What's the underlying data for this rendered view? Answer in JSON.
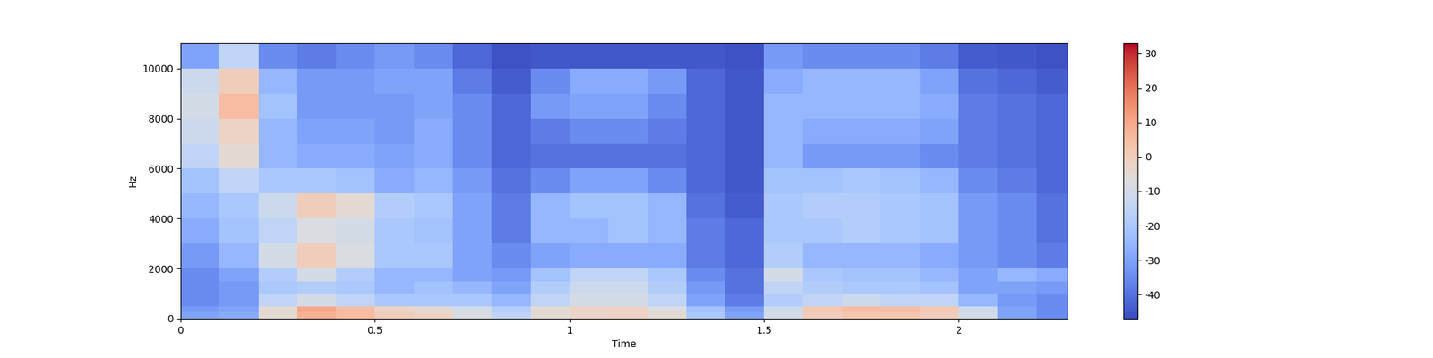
{
  "chart_data": {
    "type": "heatmap",
    "x_label": "Time",
    "y_label": "Hz",
    "color": "coolwarm",
    "xlim": [
      0,
      2.28
    ],
    "ylim": [
      0,
      11025
    ],
    "xticks": [
      0,
      0.5,
      1,
      1.5,
      2
    ],
    "yticks": [
      0,
      2000,
      4000,
      6000,
      8000,
      10000
    ],
    "x_edges": [
      0,
      0.1,
      0.2,
      0.3,
      0.4,
      0.5,
      0.6,
      0.7,
      0.8,
      0.9,
      1.0,
      1.1,
      1.2,
      1.3,
      1.4,
      1.5,
      1.6,
      1.7,
      1.8,
      1.9,
      2.0,
      2.1,
      2.2,
      2.28
    ],
    "y_edges": [
      0,
      250,
      500,
      1000,
      1500,
      2000,
      3000,
      4000,
      5000,
      6000,
      7000,
      8000,
      9000,
      10000,
      11025
    ],
    "cells": [
      [
        -30,
        -28,
        -5,
        8,
        5,
        0,
        -2,
        -8,
        -15,
        -5,
        -3,
        -2,
        -5,
        -20,
        -30,
        -10,
        0,
        3,
        3,
        0,
        -10,
        -30,
        -35
      ],
      [
        -32,
        -30,
        -5,
        10,
        5,
        -2,
        -5,
        -10,
        -18,
        -5,
        -2,
        -2,
        -8,
        -22,
        -32,
        -12,
        2,
        5,
        5,
        2,
        -12,
        -30,
        -35
      ],
      [
        -35,
        -32,
        -15,
        -10,
        -15,
        -20,
        -20,
        -20,
        -25,
        -15,
        -10,
        -10,
        -15,
        -30,
        -38,
        -18,
        -15,
        -12,
        -15,
        -15,
        -25,
        -32,
        -35
      ],
      [
        -35,
        -32,
        -20,
        -18,
        -20,
        -25,
        -22,
        -25,
        -30,
        -18,
        -12,
        -12,
        -18,
        -32,
        -40,
        -15,
        -18,
        -20,
        -20,
        -22,
        -30,
        -30,
        -32
      ],
      [
        -35,
        -30,
        -18,
        -10,
        -18,
        -25,
        -25,
        -30,
        -32,
        -22,
        -15,
        -15,
        -20,
        -35,
        -40,
        -10,
        -20,
        -22,
        -22,
        -25,
        -30,
        -25,
        -28
      ],
      [
        -32,
        -25,
        -10,
        0,
        -8,
        -20,
        -20,
        -30,
        -35,
        -30,
        -28,
        -28,
        -28,
        -38,
        -42,
        -18,
        -25,
        -25,
        -25,
        -28,
        -32,
        -35,
        -38
      ],
      [
        -28,
        -22,
        -15,
        -8,
        -10,
        -20,
        -22,
        -30,
        -38,
        -25,
        -25,
        -22,
        -25,
        -38,
        -42,
        -20,
        -20,
        -18,
        -20,
        -22,
        -32,
        -35,
        -40
      ],
      [
        -25,
        -20,
        -12,
        0,
        -5,
        -18,
        -20,
        -30,
        -38,
        -25,
        -22,
        -22,
        -25,
        -40,
        -44,
        -20,
        -18,
        -18,
        -20,
        -22,
        -32,
        -35,
        -40
      ],
      [
        -22,
        -15,
        -20,
        -20,
        -22,
        -28,
        -25,
        -32,
        -40,
        -35,
        -30,
        -30,
        -35,
        -42,
        -45,
        -22,
        -22,
        -20,
        -22,
        -25,
        -35,
        -38,
        -42
      ],
      [
        -15,
        -5,
        -25,
        -28,
        -28,
        -30,
        -28,
        -35,
        -42,
        -40,
        -40,
        -40,
        -40,
        -42,
        -45,
        -25,
        -32,
        -32,
        -32,
        -35,
        -38,
        -40,
        -42
      ],
      [
        -12,
        -2,
        -25,
        -30,
        -30,
        -32,
        -28,
        -35,
        -42,
        -38,
        -35,
        -35,
        -38,
        -42,
        -45,
        -25,
        -28,
        -28,
        -28,
        -30,
        -38,
        -40,
        -42
      ],
      [
        -10,
        5,
        -22,
        -32,
        -32,
        -32,
        -30,
        -35,
        -42,
        -32,
        -30,
        -30,
        -35,
        -42,
        -45,
        -25,
        -25,
        -25,
        -25,
        -28,
        -38,
        -40,
        -42
      ],
      [
        -12,
        0,
        -25,
        -32,
        -32,
        -30,
        -30,
        -38,
        -44,
        -35,
        -28,
        -28,
        -32,
        -42,
        -45,
        -28,
        -25,
        -25,
        -25,
        -30,
        -40,
        -42,
        -44
      ],
      [
        -30,
        -15,
        -35,
        -38,
        -35,
        -32,
        -35,
        -42,
        -46,
        -45,
        -45,
        -45,
        -45,
        -45,
        -46,
        -32,
        -35,
        -35,
        -35,
        -38,
        -44,
        -45,
        -46
      ]
    ],
    "colorbar": {
      "range": [
        -47,
        33
      ],
      "ticks": [
        -40,
        -30,
        -20,
        -10,
        0,
        10,
        20,
        30
      ]
    }
  }
}
